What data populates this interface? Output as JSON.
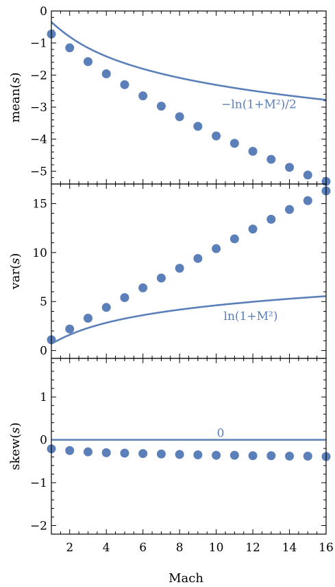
{
  "chart_data": [
    {
      "type": "scatter",
      "ylabel": "mean(s)",
      "xlim": [
        1,
        16
      ],
      "ylim": [
        -5.4,
        0
      ],
      "yticks": [
        0,
        -1,
        -2,
        -3,
        -4,
        -5
      ],
      "ytick_labels": [
        "0",
        "−1",
        "−2",
        "−3",
        "−4",
        "−5"
      ],
      "series": [
        {
          "x": [
            1,
            2,
            3,
            4,
            5,
            6,
            7,
            8,
            9,
            10,
            11,
            12,
            13,
            14,
            15,
            16
          ],
          "y": [
            -0.72,
            -1.15,
            -1.58,
            -1.96,
            -2.3,
            -2.65,
            -2.97,
            -3.3,
            -3.6,
            -3.9,
            -4.13,
            -4.38,
            -4.63,
            -4.88,
            -5.12,
            -5.32
          ]
        }
      ],
      "curve": {
        "formula": "-ln(1+M^2)/2",
        "label": "−ln(1+M²)/2"
      }
    },
    {
      "type": "scatter",
      "ylabel": "var(s)",
      "xlim": [
        1,
        16
      ],
      "ylim": [
        -0.8,
        17
      ],
      "yticks": [
        0,
        5,
        10,
        15
      ],
      "ytick_labels": [
        "0",
        "5",
        "10",
        "15"
      ],
      "series": [
        {
          "x": [
            1,
            2,
            3,
            4,
            5,
            6,
            7,
            8,
            9,
            10,
            11,
            12,
            13,
            14,
            15,
            16
          ],
          "y": [
            1.1,
            2.2,
            3.3,
            4.4,
            5.4,
            6.4,
            7.4,
            8.4,
            9.4,
            10.4,
            11.4,
            12.4,
            13.4,
            14.4,
            15.3,
            16.3
          ]
        }
      ],
      "curve": {
        "formula": "ln(1+M^2)",
        "label": "ln(1+M²)"
      }
    },
    {
      "type": "scatter",
      "ylabel": "skew(s)",
      "xlabel": "Mach",
      "xlim": [
        1,
        16
      ],
      "ylim": [
        -2.2,
        1.9
      ],
      "yticks": [
        1,
        0,
        -1,
        -2
      ],
      "ytick_labels": [
        "1",
        "0",
        "−1",
        "−2"
      ],
      "xticks": [
        2,
        4,
        6,
        8,
        10,
        12,
        14,
        16
      ],
      "xtick_labels": [
        "2",
        "4",
        "6",
        "8",
        "10",
        "12",
        "14",
        "16"
      ],
      "series": [
        {
          "x": [
            1,
            2,
            3,
            4,
            5,
            6,
            7,
            8,
            9,
            10,
            11,
            12,
            13,
            14,
            15,
            16
          ],
          "y": [
            -0.21,
            -0.25,
            -0.28,
            -0.3,
            -0.31,
            -0.32,
            -0.33,
            -0.34,
            -0.35,
            -0.36,
            -0.36,
            -0.37,
            -0.37,
            -0.38,
            -0.38,
            -0.39
          ]
        }
      ],
      "curve": {
        "formula": "0",
        "label": "0"
      }
    }
  ]
}
